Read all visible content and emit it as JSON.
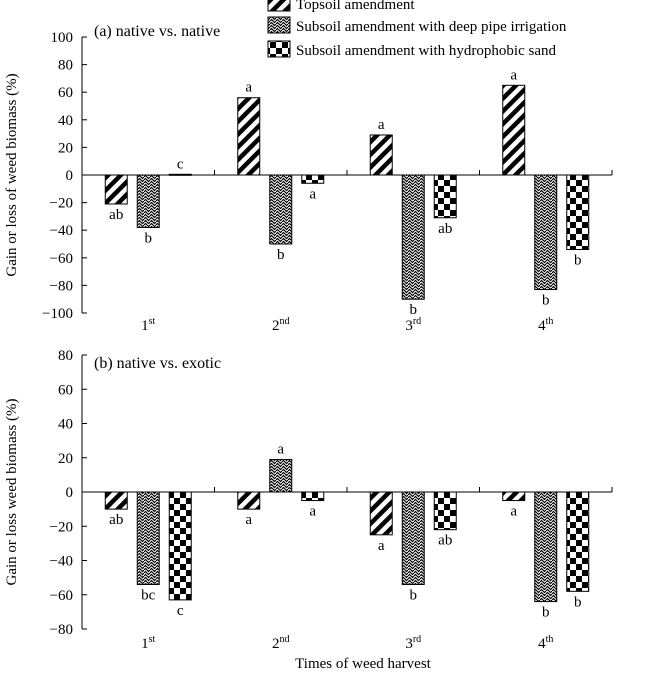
{
  "legend": [
    {
      "label": "Topsoil amendment",
      "pattern": "diag"
    },
    {
      "label": "Subsoil amendment with deep pipe irrigation",
      "pattern": "wave"
    },
    {
      "label": "Subsoil amendment with hydrophobic sand",
      "pattern": "check"
    }
  ],
  "xlabel": "Times of weed harvest",
  "chart_data": [
    {
      "type": "bar",
      "title": "(a) native vs. native",
      "ylabel": "Gain or loss of weed biomass (%)",
      "ylim": [
        -100,
        100
      ],
      "yticks": [
        100,
        80,
        60,
        40,
        20,
        0,
        -20,
        -40,
        -60,
        -80,
        -100
      ],
      "categories": [
        {
          "base": "1",
          "sup": "st"
        },
        {
          "base": "2",
          "sup": "nd"
        },
        {
          "base": "3",
          "sup": "rd"
        },
        {
          "base": "4",
          "sup": "th"
        }
      ],
      "series": [
        {
          "name": "Topsoil amendment",
          "values": [
            -21,
            56,
            29,
            65
          ],
          "letters": [
            "ab",
            "a",
            "a",
            "a"
          ]
        },
        {
          "name": "Subsoil amendment with deep pipe irrigation",
          "values": [
            -38,
            -50,
            -90,
            -83
          ],
          "letters": [
            "b",
            "b",
            "b",
            "b"
          ]
        },
        {
          "name": "Subsoil amendment with hydrophobic sand",
          "values": [
            0.5,
            -6,
            -31,
            -54
          ],
          "letters": [
            "c",
            "a",
            "ab",
            "b"
          ]
        }
      ]
    },
    {
      "type": "bar",
      "title": "(b) native vs. exotic",
      "ylabel": "Gain or loss weed biomass (%)",
      "ylim": [
        -80,
        80
      ],
      "yticks": [
        80,
        60,
        40,
        20,
        0,
        -20,
        -40,
        -60,
        -80
      ],
      "categories": [
        {
          "base": "1",
          "sup": "st"
        },
        {
          "base": "2",
          "sup": "nd"
        },
        {
          "base": "3",
          "sup": "rd"
        },
        {
          "base": "4",
          "sup": "th"
        }
      ],
      "series": [
        {
          "name": "Topsoil amendment",
          "values": [
            -10,
            -10,
            -25,
            -5
          ],
          "letters": [
            "ab",
            "a",
            "a",
            "a"
          ]
        },
        {
          "name": "Subsoil amendment with deep pipe irrigation",
          "values": [
            -54,
            19,
            -54,
            -64
          ],
          "letters": [
            "bc",
            "a",
            "b",
            "b"
          ]
        },
        {
          "name": "Subsoil amendment with hydrophobic sand",
          "values": [
            -63,
            -5,
            -22,
            -58
          ],
          "letters": [
            "c",
            "a",
            "ab",
            "b"
          ]
        }
      ]
    }
  ]
}
